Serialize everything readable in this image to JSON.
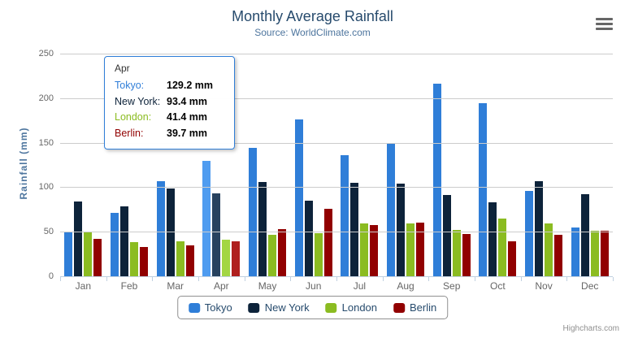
{
  "credits": "Highcharts.com",
  "icons": {
    "export_menu": "hamburger-menu-icon"
  },
  "chart_data": {
    "type": "bar",
    "title": "Monthly Average Rainfall",
    "subtitle": "Source: WorldClimate.com",
    "xlabel": "",
    "ylabel": "Rainfall (mm)",
    "ylim": [
      0,
      250
    ],
    "y_ticks": [
      0,
      50,
      100,
      150,
      200,
      250
    ],
    "grid": true,
    "legend_position": "bottom",
    "categories": [
      "Jan",
      "Feb",
      "Mar",
      "Apr",
      "May",
      "Jun",
      "Jul",
      "Aug",
      "Sep",
      "Oct",
      "Nov",
      "Dec"
    ],
    "series": [
      {
        "name": "Tokyo",
        "color": "#2f7ed8",
        "hover_color": "#4f9cf0",
        "values": [
          49.9,
          71.5,
          106.4,
          129.2,
          144.0,
          176.0,
          135.6,
          148.5,
          216.4,
          194.1,
          95.6,
          54.4
        ]
      },
      {
        "name": "New York",
        "color": "#0d233a",
        "hover_color": "#27425f",
        "values": [
          83.6,
          78.8,
          98.5,
          93.4,
          106.0,
          84.5,
          105.0,
          104.3,
          91.2,
          83.5,
          106.6,
          92.3
        ]
      },
      {
        "name": "London",
        "color": "#8bbc21",
        "hover_color": "#a3d644",
        "values": [
          48.9,
          38.8,
          39.3,
          41.4,
          47.0,
          48.3,
          59.0,
          59.6,
          52.4,
          65.2,
          59.3,
          51.2
        ]
      },
      {
        "name": "Berlin",
        "color": "#910000",
        "hover_color": "#b01f1f",
        "values": [
          42.4,
          33.2,
          34.5,
          39.7,
          52.6,
          75.5,
          57.4,
          60.4,
          47.6,
          39.1,
          46.8,
          51.1
        ]
      }
    ],
    "hovered_category_index": 3
  },
  "tooltip": {
    "category": "Apr",
    "border_color": "#2f7ed8",
    "rows": [
      {
        "label": "Tokyo:",
        "value": "129.2 mm",
        "color": "#2f7ed8"
      },
      {
        "label": "New York:",
        "value": "93.4 mm",
        "color": "#0d233a"
      },
      {
        "label": "London:",
        "value": "41.4 mm",
        "color": "#8bbc21"
      },
      {
        "label": "Berlin:",
        "value": "39.7 mm",
        "color": "#910000"
      }
    ]
  }
}
